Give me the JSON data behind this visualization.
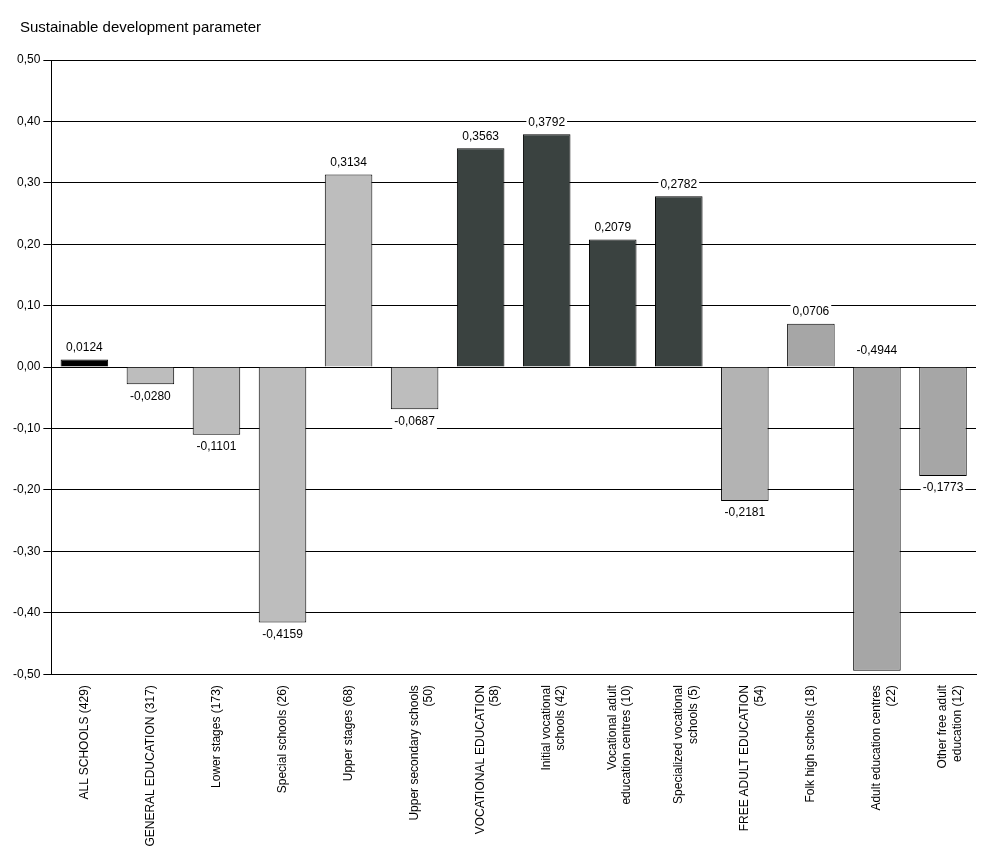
{
  "chart_data": {
    "type": "bar",
    "title": "Sustainable development parameter",
    "categories": [
      "ALL SCHOOLS (429)",
      "GENERAL EDUCATION (317)",
      "Lower stages (173)",
      "Special schools (26)",
      "Upper stages (68)",
      "Upper secondary schools (50)",
      "VOCATIONAL EDUCATION (58)",
      "Initial vocational schools (42)",
      "Vocational adult education centres (10)",
      "Specialized vocational schools (5)",
      "FREE ADULT EDUCATION (54)",
      "Folk high schools (18)",
      "Adult education centres (22)",
      "Other free adult education (12)"
    ],
    "values": [
      0.0124,
      -0.028,
      -0.1101,
      -0.4159,
      0.3134,
      -0.0687,
      0.3563,
      0.3792,
      0.2079,
      0.2782,
      -0.2181,
      0.0706,
      -0.4944,
      -0.1773
    ],
    "value_labels": [
      "0,0124",
      "-0,0280",
      "-0,1101",
      "-0,4159",
      "0,3134",
      "-0,0687",
      "0,3563",
      "0,3792",
      "0,2079",
      "0,2782",
      "-0,2181",
      "0,0706",
      "-0,4944",
      "-0,1773"
    ],
    "colors": [
      "#000000",
      "#bdbdbd",
      "#bdbdbd",
      "#bdbdbd",
      "#bdbdbd",
      "#bdbdbd",
      "#3a4240",
      "#3a4240",
      "#3a4240",
      "#3a4240",
      "#b3b3b3",
      "#a6a6a6",
      "#a6a6a6",
      "#a6a6a6"
    ],
    "ylim": [
      -0.5,
      0.5
    ],
    "yticks": [
      {
        "value": -0.5,
        "label": "-0,50"
      },
      {
        "value": -0.4,
        "label": "-0,40"
      },
      {
        "value": -0.3,
        "label": "-0,30"
      },
      {
        "value": -0.2,
        "label": "-0,20"
      },
      {
        "value": -0.1,
        "label": "-0,10"
      },
      {
        "value": 0,
        "label": "0,00"
      },
      {
        "value": 0.1,
        "label": "0,10"
      },
      {
        "value": 0.2,
        "label": "0,20"
      },
      {
        "value": 0.3,
        "label": "0,30"
      },
      {
        "value": 0.4,
        "label": "0,40"
      },
      {
        "value": 0.5,
        "label": "0,50"
      }
    ],
    "grid": "y"
  }
}
